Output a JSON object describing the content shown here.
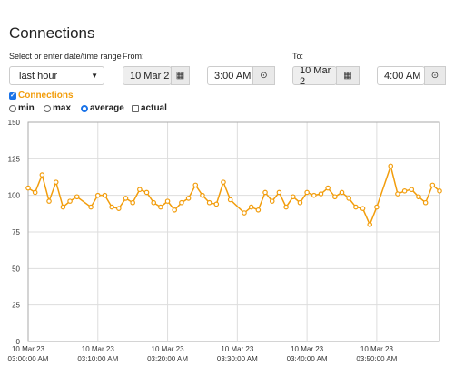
{
  "title": "Connections",
  "range_label": "Select or enter date/time range",
  "range_select": "last hour",
  "from": {
    "label": "From:",
    "date": "10 Mar 2",
    "time": "3:00 AM"
  },
  "to": {
    "label": "To:",
    "date": "10 Mar 2",
    "time": "4:00 AM"
  },
  "modes": [
    "min",
    "max",
    "average"
  ],
  "actual": "actual",
  "chart_data": {
    "type": "line",
    "x": [
      "03:00:00",
      "03:01:00",
      "03:02:00",
      "03:03:00",
      "03:04:00",
      "03:05:00",
      "03:06:00",
      "03:07:00",
      "03:09:00",
      "03:10:00",
      "03:11:00",
      "03:12:00",
      "03:13:00",
      "03:14:00",
      "03:15:00",
      "03:16:00",
      "03:17:00",
      "03:18:00",
      "03:19:00",
      "03:20:00",
      "03:21:00",
      "03:22:00",
      "03:23:00",
      "03:24:00",
      "03:25:00",
      "03:26:00",
      "03:27:00",
      "03:28:00",
      "03:29:00",
      "03:31:00",
      "03:32:00",
      "03:33:00",
      "03:34:00",
      "03:35:00",
      "03:36:00",
      "03:37:00",
      "03:38:00",
      "03:39:00",
      "03:40:00",
      "03:41:00",
      "03:42:00",
      "03:43:00",
      "03:44:00",
      "03:45:00",
      "03:46:00",
      "03:47:00",
      "03:48:00",
      "03:49:00",
      "03:50:00",
      "03:52:00",
      "03:53:00",
      "03:54:00",
      "03:55:00",
      "03:56:00",
      "03:57:00",
      "03:58:00",
      "03:59:00"
    ],
    "series": [
      {
        "name": "Connections",
        "color": "#f29d0c",
        "values": [
          105,
          102,
          114,
          96,
          109,
          92,
          96,
          99,
          92,
          100,
          100,
          92,
          91,
          98,
          95,
          104,
          102,
          95,
          92,
          96,
          90,
          95,
          98,
          107,
          100,
          95,
          94,
          109,
          97,
          88,
          92,
          90,
          102,
          96,
          102,
          92,
          99,
          95,
          102,
          100,
          101,
          105,
          99,
          102,
          98,
          92,
          91,
          80,
          92,
          120,
          101,
          103,
          104,
          99,
          95,
          107,
          103
        ]
      }
    ],
    "ylim": [
      0,
      150
    ],
    "yticks": [
      0,
      25,
      50,
      75,
      100,
      125,
      150
    ],
    "xlim": [
      "03:00:00",
      "03:59:00"
    ],
    "xticks": [
      {
        "value": "03:00:00",
        "label": [
          "10 Mar 23",
          "03:00:00 AM"
        ]
      },
      {
        "value": "03:10:00",
        "label": [
          "10 Mar 23",
          "03:10:00 AM"
        ]
      },
      {
        "value": "03:20:00",
        "label": [
          "10 Mar 23",
          "03:20:00 AM"
        ]
      },
      {
        "value": "03:30:00",
        "label": [
          "10 Mar 23",
          "03:30:00 AM"
        ]
      },
      {
        "value": "03:40:00",
        "label": [
          "10 Mar 23",
          "03:40:00 AM"
        ]
      },
      {
        "value": "03:50:00",
        "label": [
          "10 Mar 23",
          "03:50:00 AM"
        ]
      }
    ],
    "grid": true
  }
}
